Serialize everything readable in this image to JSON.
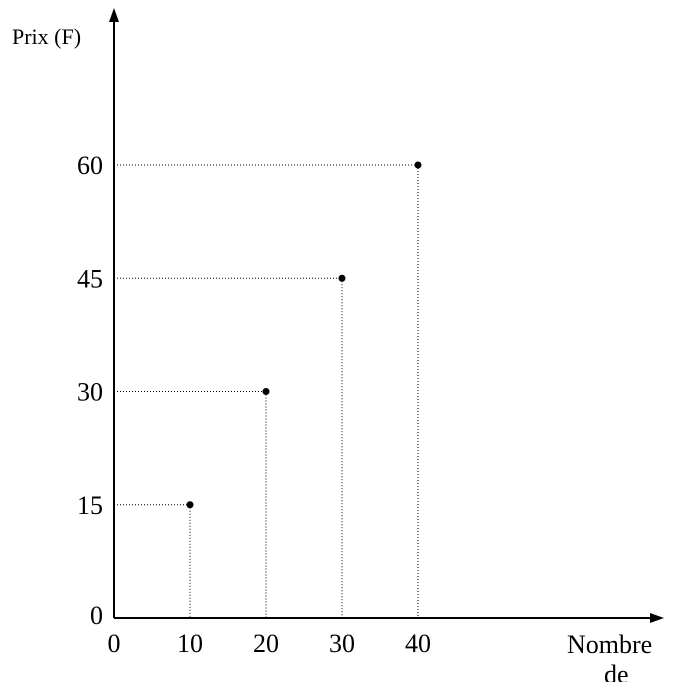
{
  "chart_data": {
    "type": "scatter",
    "title": "",
    "xlabel": "Nombre de",
    "ylabel": "Prix (F)",
    "x_ticks": [
      "0",
      "10",
      "20",
      "30",
      "40"
    ],
    "y_ticks": [
      "0",
      "15",
      "30",
      "45",
      "60"
    ],
    "xlim": [
      0,
      70
    ],
    "ylim": [
      0,
      80
    ],
    "grid": false,
    "series": [
      {
        "x": [
          10,
          20,
          30,
          40
        ],
        "y": [
          15,
          30,
          45,
          60
        ]
      }
    ],
    "reference_lines": "dotted lines from each point to both axes",
    "colors": {
      "ink": "#000000",
      "background": "#ffffff"
    }
  }
}
